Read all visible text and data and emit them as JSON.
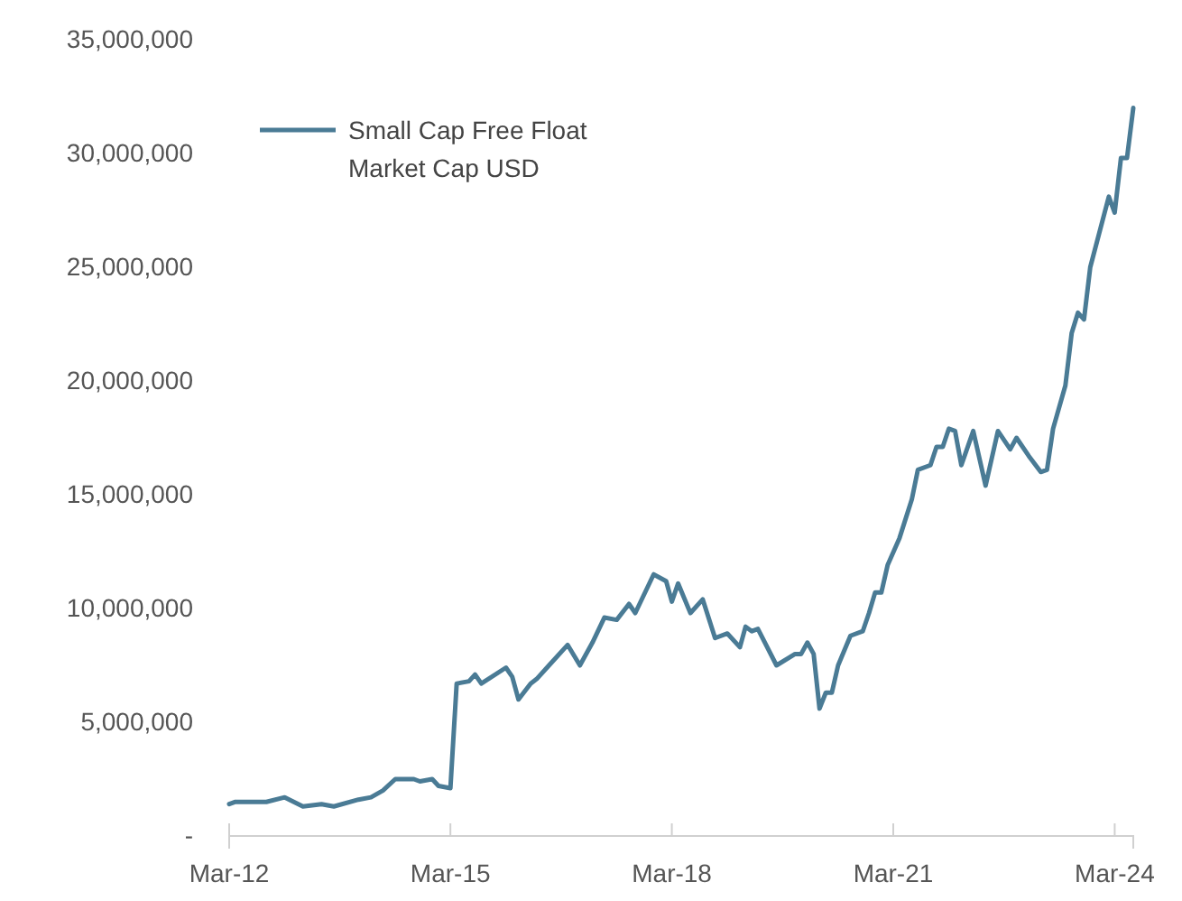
{
  "chart_data": {
    "type": "line",
    "legend": "top left",
    "marker": "none",
    "line_style": "solid",
    "grid": false,
    "xlim": [
      "2012-03",
      "2024-06"
    ],
    "xticks": [
      {
        "value": "2012-03",
        "label": "Mar-12"
      },
      {
        "value": "2015-03",
        "label": "Mar-15"
      },
      {
        "value": "2018-03",
        "label": "Mar-18"
      },
      {
        "value": "2021-03",
        "label": "Mar-21"
      },
      {
        "value": "2024-03",
        "label": "Mar-24"
      }
    ],
    "ylim": [
      0,
      35000000
    ],
    "yticks": [
      {
        "value": 0,
        "label": "-"
      },
      {
        "value": 5000000,
        "label": "5,000,000"
      },
      {
        "value": 10000000,
        "label": "10,000,000"
      },
      {
        "value": 15000000,
        "label": "15,000,000"
      },
      {
        "value": 20000000,
        "label": "20,000,000"
      },
      {
        "value": 25000000,
        "label": "25,000,000"
      },
      {
        "value": 30000000,
        "label": "30,000,000"
      },
      {
        "value": 35000000,
        "label": "35,000,000"
      }
    ],
    "x": [
      "2012-03",
      "2012-04",
      "2012-09",
      "2012-12",
      "2013-03",
      "2013-06",
      "2013-08",
      "2013-12",
      "2014-02",
      "2014-04",
      "2014-06",
      "2014-09",
      "2014-10",
      "2014-12",
      "2015-01",
      "2015-03",
      "2015-04",
      "2015-06",
      "2015-07",
      "2015-08",
      "2015-12",
      "2016-01",
      "2016-02",
      "2016-04",
      "2016-05",
      "2016-07",
      "2016-10",
      "2016-12",
      "2017-02",
      "2017-04",
      "2017-06",
      "2017-08",
      "2017-09",
      "2017-12",
      "2018-02",
      "2018-03",
      "2018-04",
      "2018-06",
      "2018-08",
      "2018-10",
      "2018-12",
      "2019-02",
      "2019-03",
      "2019-04",
      "2019-05",
      "2019-08",
      "2019-11",
      "2019-12",
      "2020-01",
      "2020-02",
      "2020-03",
      "2020-04",
      "2020-05",
      "2020-06",
      "2020-08",
      "2020-10",
      "2020-11",
      "2020-12",
      "2021-01",
      "2021-02",
      "2021-04",
      "2021-06",
      "2021-07",
      "2021-09",
      "2021-10",
      "2021-11",
      "2021-12",
      "2022-01",
      "2022-02",
      "2022-04",
      "2022-06",
      "2022-08",
      "2022-10",
      "2022-11",
      "2023-01",
      "2023-03",
      "2023-04",
      "2023-05",
      "2023-07",
      "2023-08",
      "2023-09",
      "2023-10",
      "2023-11",
      "2024-02",
      "2024-03",
      "2024-04",
      "2024-05",
      "2024-06"
    ],
    "series": [
      {
        "name": "Small Cap Free Float Market Cap USD",
        "color": "#4a7b95",
        "values": [
          1400000,
          1500000,
          1500000,
          1700000,
          1300000,
          1400000,
          1300000,
          1600000,
          1700000,
          2000000,
          2500000,
          2500000,
          2400000,
          2500000,
          2200000,
          2100000,
          6700000,
          6800000,
          7100000,
          6700000,
          7400000,
          7000000,
          6000000,
          6700000,
          6900000,
          7500000,
          8400000,
          7500000,
          8500000,
          9600000,
          9500000,
          10200000,
          9800000,
          11500000,
          11200000,
          10300000,
          11100000,
          9800000,
          10400000,
          8700000,
          8900000,
          8300000,
          9200000,
          9000000,
          9100000,
          7500000,
          8000000,
          8000000,
          8500000,
          8000000,
          5600000,
          6300000,
          6300000,
          7500000,
          8800000,
          9000000,
          9800000,
          10700000,
          10700000,
          11900000,
          13100000,
          14800000,
          16100000,
          16300000,
          17100000,
          17100000,
          17900000,
          17800000,
          16300000,
          17800000,
          15400000,
          17800000,
          17000000,
          17500000,
          16700000,
          16000000,
          16100000,
          17900000,
          19800000,
          22100000,
          23000000,
          22700000,
          25000000,
          28100000,
          27400000,
          29800000,
          29800000,
          32000000
        ]
      }
    ]
  }
}
